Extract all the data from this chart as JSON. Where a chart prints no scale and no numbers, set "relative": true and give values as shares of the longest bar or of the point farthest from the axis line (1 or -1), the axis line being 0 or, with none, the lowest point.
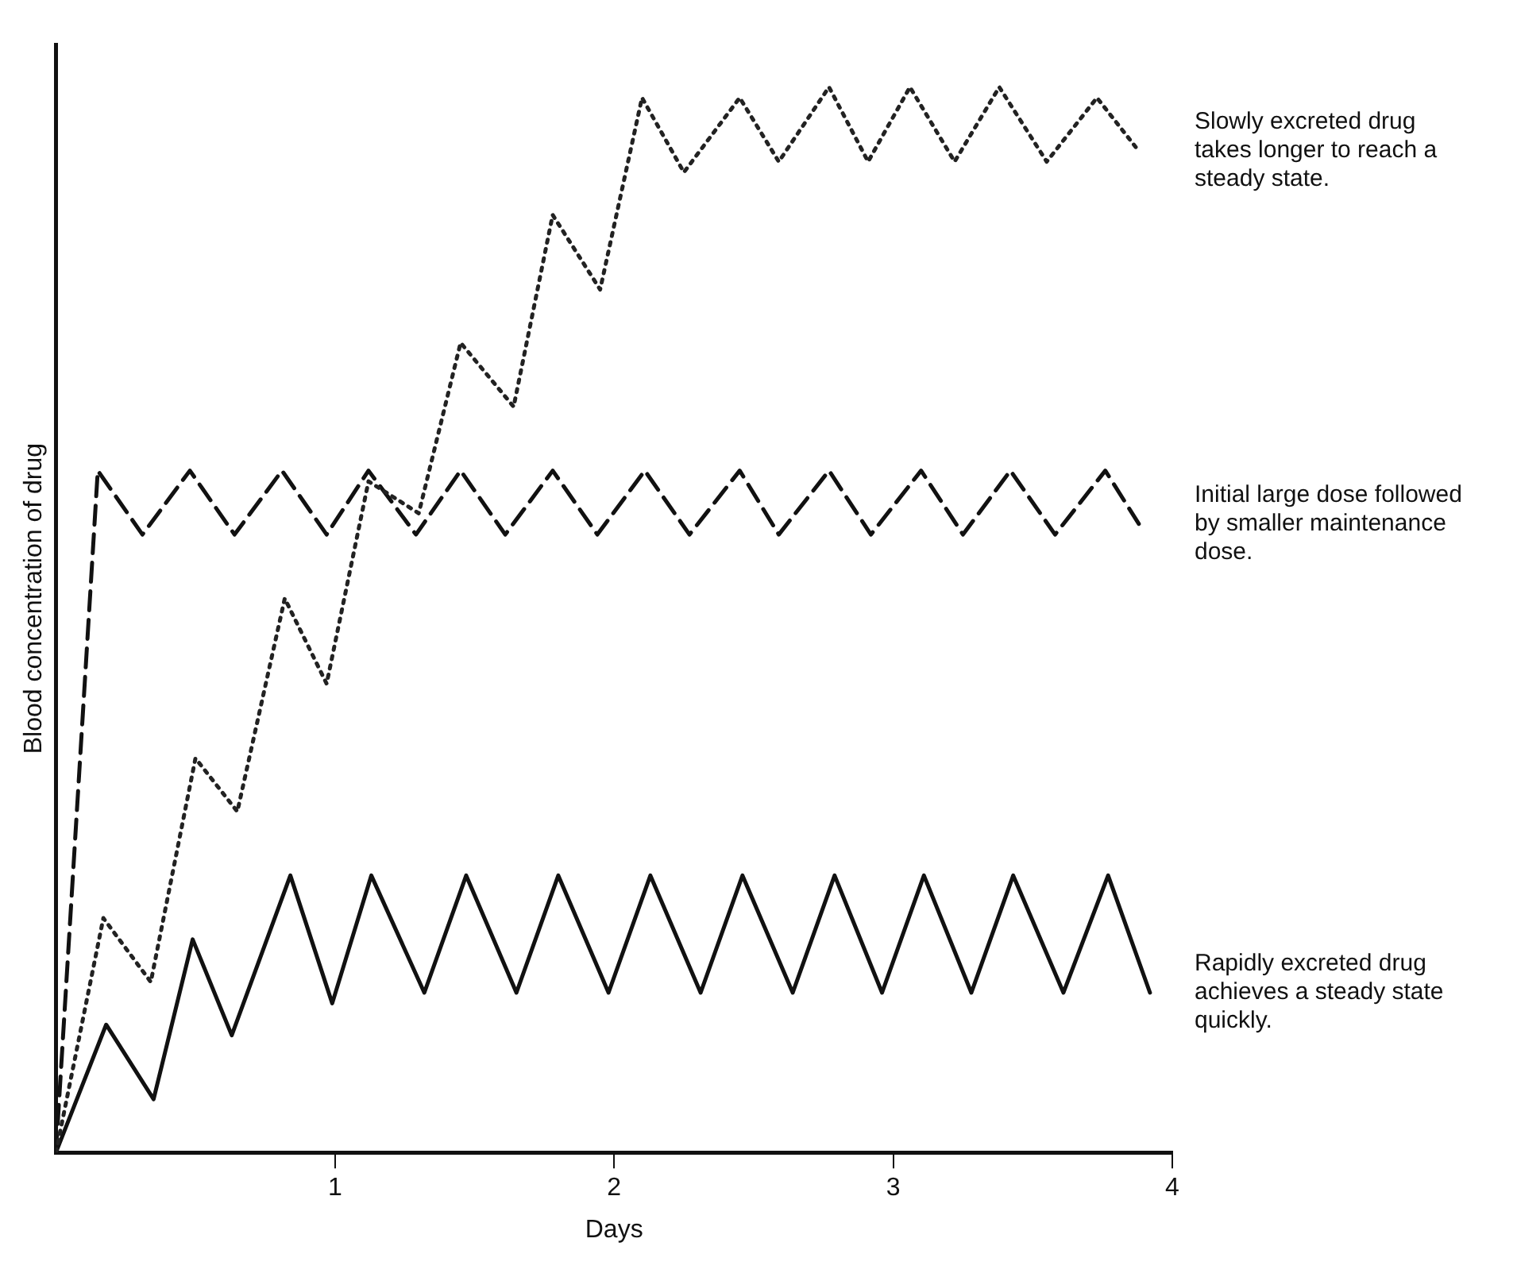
{
  "chart_data": {
    "type": "line",
    "relative": true,
    "xlabel": "Days",
    "ylabel": "Blood concentration of drug",
    "xlim": [
      0,
      4
    ],
    "xticks": [
      1,
      2,
      3,
      4
    ],
    "grid": false,
    "legend": false,
    "marker": "none",
    "series": [
      {
        "color": "#222222",
        "line_style": "dotted",
        "x": [
          0,
          0.17,
          0.34,
          0.5,
          0.65,
          0.82,
          0.97,
          1.12,
          1.3,
          1.45,
          1.64,
          1.78,
          1.95,
          2.1,
          2.25,
          2.45,
          2.59,
          2.77,
          2.91,
          3.06,
          3.22,
          3.38,
          3.55,
          3.73,
          3.88
        ],
        "values": [
          0,
          0.22,
          0.16,
          0.37,
          0.32,
          0.52,
          0.44,
          0.63,
          0.6,
          0.76,
          0.7,
          0.88,
          0.81,
          0.99,
          0.92,
          0.99,
          0.93,
          1,
          0.93,
          1,
          0.93,
          1,
          0.93,
          0.99,
          0.94
        ]
      },
      {
        "color": "#111111",
        "line_style": "dashed",
        "x": [
          0,
          0.15,
          0.31,
          0.48,
          0.64,
          0.81,
          0.97,
          1.12,
          1.29,
          1.45,
          1.61,
          1.78,
          1.94,
          2.11,
          2.27,
          2.45,
          2.59,
          2.77,
          2.92,
          3.1,
          3.25,
          3.42,
          3.58,
          3.76,
          3.88
        ],
        "values": [
          0,
          0.64,
          0.58,
          0.64,
          0.58,
          0.64,
          0.58,
          0.64,
          0.58,
          0.64,
          0.58,
          0.64,
          0.58,
          0.64,
          0.58,
          0.64,
          0.58,
          0.64,
          0.58,
          0.64,
          0.58,
          0.64,
          0.58,
          0.64,
          0.59
        ]
      },
      {
        "color": "#111111",
        "line_style": "solid",
        "x": [
          0,
          0.18,
          0.35,
          0.49,
          0.63,
          0.84,
          0.99,
          1.13,
          1.32,
          1.47,
          1.65,
          1.8,
          1.98,
          2.13,
          2.31,
          2.46,
          2.64,
          2.79,
          2.96,
          3.11,
          3.28,
          3.43,
          3.61,
          3.77,
          3.92
        ],
        "values": [
          0,
          0.12,
          0.05,
          0.2,
          0.11,
          0.26,
          0.14,
          0.26,
          0.15,
          0.26,
          0.15,
          0.26,
          0.15,
          0.26,
          0.15,
          0.26,
          0.15,
          0.26,
          0.15,
          0.26,
          0.15,
          0.26,
          0.15,
          0.26,
          0.15
        ]
      }
    ],
    "annotations": [
      "Slowly excreted drug takes longer to reach a steady state.",
      "Initial large dose followed by smaller maintenance dose.",
      "Rapidly excreted drug achieves a steady state quickly."
    ]
  }
}
